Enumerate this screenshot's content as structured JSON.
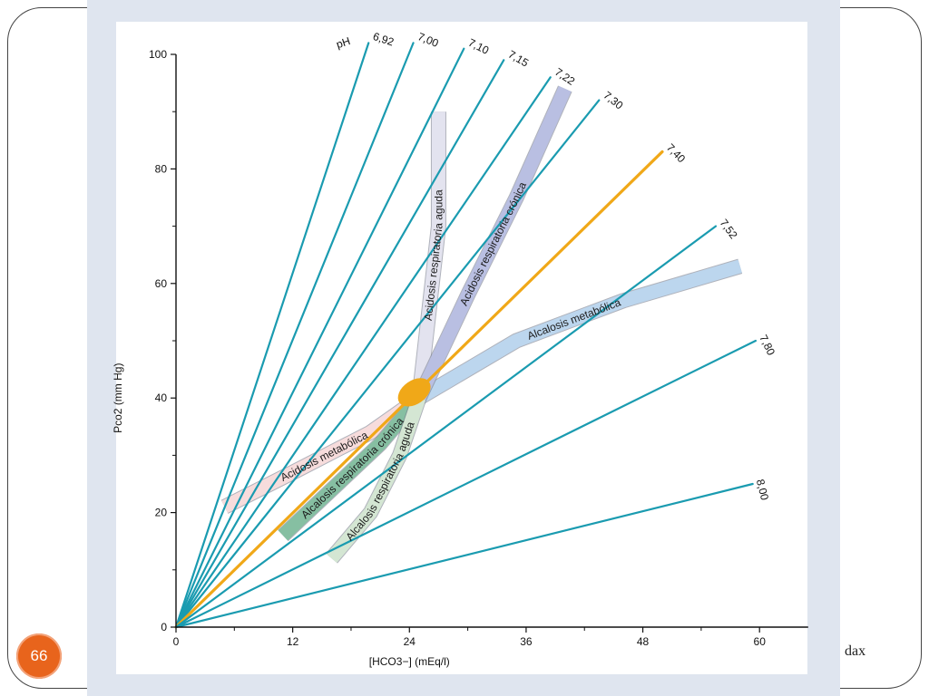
{
  "slide": {
    "number": "66",
    "corner_text": "dax"
  },
  "chart_data": {
    "type": "line",
    "xlabel": "[HCO3−] (mEq/l)",
    "ylabel": "Pco2 (mm Hg)",
    "xlim": [
      0,
      65
    ],
    "ylim": [
      0,
      100
    ],
    "x_ticks": [
      "0",
      "12",
      "24",
      "36",
      "48",
      "60"
    ],
    "y_ticks": [
      "0",
      "20",
      "40",
      "60",
      "80",
      "100"
    ],
    "ph_prefix": "pH",
    "series": [
      {
        "name": "6,92",
        "end": [
          19.8,
          102
        ],
        "color": "#1a9bb0"
      },
      {
        "name": "7,00",
        "end": [
          24.4,
          102
        ],
        "color": "#1a9bb0"
      },
      {
        "name": "7,10",
        "end": [
          29.6,
          101
        ],
        "color": "#1a9bb0"
      },
      {
        "name": "7,15",
        "end": [
          33.7,
          99
        ],
        "color": "#1a9bb0"
      },
      {
        "name": "7,22",
        "end": [
          38.5,
          96
        ],
        "color": "#1a9bb0"
      },
      {
        "name": "7,30",
        "end": [
          43.5,
          92
        ],
        "color": "#1a9bb0"
      },
      {
        "name": "7,40",
        "end": [
          50.0,
          83
        ],
        "color": "#f0a818"
      },
      {
        "name": "7,52",
        "end": [
          55.5,
          70
        ],
        "color": "#1a9bb0"
      },
      {
        "name": "7,80",
        "end": [
          59.6,
          50
        ],
        "color": "#1a9bb0"
      },
      {
        "name": "8,00",
        "end": [
          59.3,
          25
        ],
        "color": "#1a9bb0"
      }
    ],
    "bands": [
      {
        "name": "Acidosis metabólica",
        "color": "#f7dcdc",
        "path": [
          [
            5,
            21
          ],
          [
            12,
            27
          ],
          [
            20,
            34
          ],
          [
            25,
            40
          ]
        ]
      },
      {
        "name": "Alcalosis metabólica",
        "color": "#bcd6ee",
        "path": [
          [
            25,
            40
          ],
          [
            35,
            50
          ],
          [
            46,
            57
          ],
          [
            58,
            63
          ]
        ]
      },
      {
        "name": "Acidosis respiratoria aguda",
        "color": "#e3e3ef",
        "path": [
          [
            25,
            40
          ],
          [
            26,
            55
          ],
          [
            27,
            70
          ],
          [
            27,
            90
          ]
        ]
      },
      {
        "name": "Acidosis respiratoria crónica",
        "color": "#b9bfe2",
        "path": [
          [
            25,
            40
          ],
          [
            30,
            58
          ],
          [
            35,
            75
          ],
          [
            40,
            94
          ]
        ]
      },
      {
        "name": "Alcalosis respiratoria crónica",
        "color": "#86bfa2",
        "path": [
          [
            11,
            16
          ],
          [
            16,
            24
          ],
          [
            21,
            32
          ],
          [
            25,
            40
          ]
        ]
      },
      {
        "name": "Alcalosis respiratoria aguda",
        "color": "#d4e6d3",
        "path": [
          [
            16,
            12
          ],
          [
            20,
            20
          ],
          [
            23,
            30
          ],
          [
            25,
            40
          ]
        ]
      }
    ],
    "normal_point": {
      "x": 24.5,
      "y": 41,
      "color": "#f0a818"
    }
  }
}
